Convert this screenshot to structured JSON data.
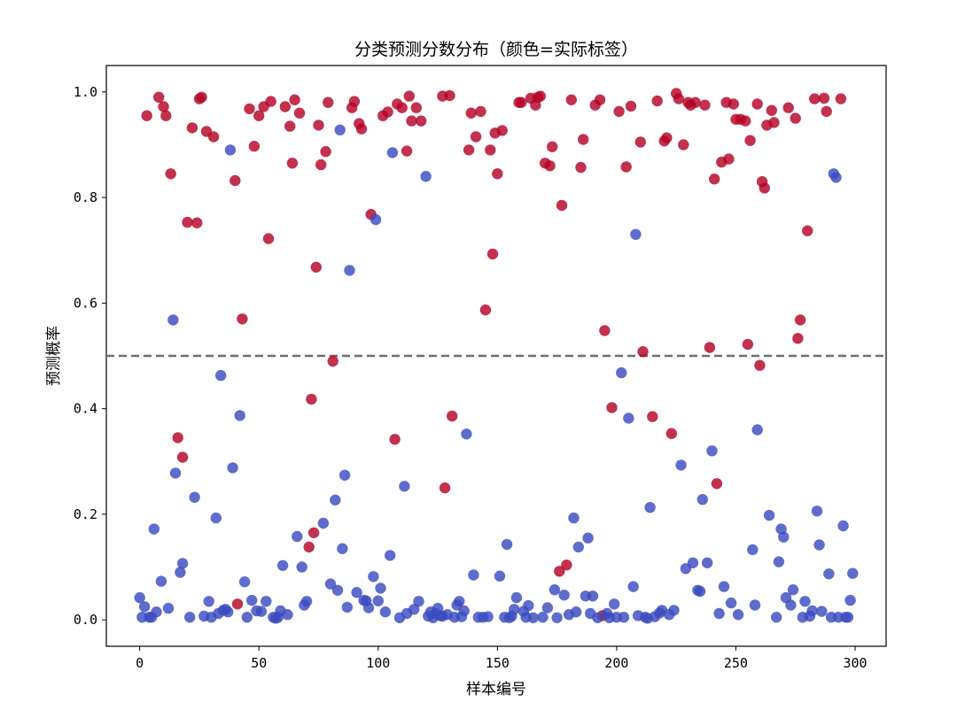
{
  "chart_data": {
    "type": "scatter",
    "title": "分类预测分数分布（颜色=实际标签）",
    "xlabel": "样本编号",
    "ylabel": "预测概率",
    "xlim": [
      -14,
      313
    ],
    "ylim": [
      -0.05,
      1.05
    ],
    "xticks": [
      0,
      50,
      100,
      150,
      200,
      250,
      300
    ],
    "yticks": [
      0.0,
      0.2,
      0.4,
      0.6,
      0.8,
      1.0
    ],
    "xtick_labels": [
      "0",
      "50",
      "100",
      "150",
      "200",
      "250",
      "300"
    ],
    "ytick_labels": [
      "0.0",
      "0.2",
      "0.4",
      "0.6",
      "0.8",
      "1.0"
    ],
    "threshold": 0.5,
    "grid": false,
    "legend": "none",
    "colors": {
      "label_1": "#b40426",
      "label_0": "#3b4cc0",
      "threshold": "#6e6e6e",
      "axes": "#000000"
    },
    "series": [
      {
        "label_value": 1,
        "points": [
          [
            3,
            0.955
          ],
          [
            8,
            0.99
          ],
          [
            10,
            0.972
          ],
          [
            11,
            0.955
          ],
          [
            13,
            0.845
          ],
          [
            16,
            0.345
          ],
          [
            18,
            0.308
          ],
          [
            20,
            0.753
          ],
          [
            22,
            0.932
          ],
          [
            24,
            0.752
          ],
          [
            25,
            0.987
          ],
          [
            26,
            0.99
          ],
          [
            28,
            0.925
          ],
          [
            31,
            0.915
          ],
          [
            40,
            0.832
          ],
          [
            41,
            0.03
          ],
          [
            43,
            0.57
          ],
          [
            46,
            0.968
          ],
          [
            48,
            0.897
          ],
          [
            50,
            0.955
          ],
          [
            52,
            0.972
          ],
          [
            54,
            0.722
          ],
          [
            55,
            0.982
          ],
          [
            61,
            0.972
          ],
          [
            63,
            0.935
          ],
          [
            64,
            0.865
          ],
          [
            65,
            0.985
          ],
          [
            67,
            0.96
          ],
          [
            71,
            0.138
          ],
          [
            72,
            0.418
          ],
          [
            73,
            0.165
          ],
          [
            74,
            0.668
          ],
          [
            75,
            0.937
          ],
          [
            76,
            0.862
          ],
          [
            78,
            0.887
          ],
          [
            79,
            0.98
          ],
          [
            81,
            0.49
          ],
          [
            89,
            0.97
          ],
          [
            90,
            0.982
          ],
          [
            92,
            0.94
          ],
          [
            93,
            0.93
          ],
          [
            97,
            0.768
          ],
          [
            102,
            0.955
          ],
          [
            104,
            0.962
          ],
          [
            107,
            0.342
          ],
          [
            108,
            0.977
          ],
          [
            110,
            0.97
          ],
          [
            112,
            0.888
          ],
          [
            113,
            0.992
          ],
          [
            114,
            0.945
          ],
          [
            116,
            0.97
          ],
          [
            118,
            0.945
          ],
          [
            127,
            0.992
          ],
          [
            128,
            0.25
          ],
          [
            130,
            0.993
          ],
          [
            131,
            0.386
          ],
          [
            138,
            0.89
          ],
          [
            139,
            0.96
          ],
          [
            141,
            0.915
          ],
          [
            143,
            0.963
          ],
          [
            145,
            0.587
          ],
          [
            147,
            0.89
          ],
          [
            148,
            0.693
          ],
          [
            149,
            0.922
          ],
          [
            150,
            0.845
          ],
          [
            152,
            0.927
          ],
          [
            159,
            0.98
          ],
          [
            160,
            0.98
          ],
          [
            164,
            0.988
          ],
          [
            166,
            0.975
          ],
          [
            167,
            0.99
          ],
          [
            168,
            0.992
          ],
          [
            170,
            0.865
          ],
          [
            172,
            0.86
          ],
          [
            173,
            0.896
          ],
          [
            176,
            0.092
          ],
          [
            177,
            0.785
          ],
          [
            179,
            0.104
          ],
          [
            181,
            0.985
          ],
          [
            185,
            0.857
          ],
          [
            186,
            0.91
          ],
          [
            191,
            0.975
          ],
          [
            193,
            0.985
          ],
          [
            194,
            0.008
          ],
          [
            195,
            0.548
          ],
          [
            198,
            0.402
          ],
          [
            201,
            0.963
          ],
          [
            204,
            0.858
          ],
          [
            206,
            0.973
          ],
          [
            210,
            0.905
          ],
          [
            211,
            0.508
          ],
          [
            215,
            0.385
          ],
          [
            217,
            0.983
          ],
          [
            220,
            0.907
          ],
          [
            221,
            0.913
          ],
          [
            223,
            0.353
          ],
          [
            225,
            0.997
          ],
          [
            226,
            0.987
          ],
          [
            228,
            0.9
          ],
          [
            230,
            0.98
          ],
          [
            231,
            0.975
          ],
          [
            233,
            0.98
          ],
          [
            237,
            0.975
          ],
          [
            239,
            0.516
          ],
          [
            241,
            0.835
          ],
          [
            242,
            0.258
          ],
          [
            244,
            0.867
          ],
          [
            246,
            0.98
          ],
          [
            247,
            0.873
          ],
          [
            249,
            0.977
          ],
          [
            250,
            0.948
          ],
          [
            252,
            0.948
          ],
          [
            254,
            0.945
          ],
          [
            255,
            0.522
          ],
          [
            256,
            0.908
          ],
          [
            259,
            0.977
          ],
          [
            260,
            0.482
          ],
          [
            261,
            0.83
          ],
          [
            262,
            0.818
          ],
          [
            263,
            0.937
          ],
          [
            265,
            0.965
          ],
          [
            266,
            0.942
          ],
          [
            272,
            0.97
          ],
          [
            275,
            0.95
          ],
          [
            276,
            0.533
          ],
          [
            277,
            0.568
          ],
          [
            280,
            0.737
          ],
          [
            283,
            0.987
          ],
          [
            287,
            0.988
          ],
          [
            288,
            0.963
          ],
          [
            294,
            0.987
          ]
        ]
      },
      {
        "label_value": 0,
        "points": [
          [
            0,
            0.042
          ],
          [
            1,
            0.005
          ],
          [
            2,
            0.025
          ],
          [
            4,
            0.005
          ],
          [
            5,
            0.005
          ],
          [
            6,
            0.172
          ],
          [
            7,
            0.015
          ],
          [
            9,
            0.073
          ],
          [
            12,
            0.022
          ],
          [
            14,
            0.568
          ],
          [
            15,
            0.278
          ],
          [
            17,
            0.09
          ],
          [
            18,
            0.107
          ],
          [
            21,
            0.005
          ],
          [
            23,
            0.232
          ],
          [
            27,
            0.007
          ],
          [
            29,
            0.035
          ],
          [
            30,
            0.005
          ],
          [
            32,
            0.193
          ],
          [
            33,
            0.012
          ],
          [
            34,
            0.463
          ],
          [
            35,
            0.018
          ],
          [
            36,
            0.02
          ],
          [
            37,
            0.015
          ],
          [
            38,
            0.89
          ],
          [
            39,
            0.288
          ],
          [
            42,
            0.387
          ],
          [
            44,
            0.072
          ],
          [
            45,
            0.005
          ],
          [
            47,
            0.037
          ],
          [
            49,
            0.017
          ],
          [
            51,
            0.016
          ],
          [
            53,
            0.035
          ],
          [
            56,
            0.005
          ],
          [
            57,
            0.003
          ],
          [
            58,
            0.005
          ],
          [
            59,
            0.017
          ],
          [
            60,
            0.103
          ],
          [
            62,
            0.01
          ],
          [
            66,
            0.158
          ],
          [
            68,
            0.1
          ],
          [
            69,
            0.028
          ],
          [
            70,
            0.035
          ],
          [
            77,
            0.183
          ],
          [
            80,
            0.068
          ],
          [
            82,
            0.227
          ],
          [
            83,
            0.056
          ],
          [
            84,
            0.928
          ],
          [
            85,
            0.135
          ],
          [
            86,
            0.274
          ],
          [
            87,
            0.024
          ],
          [
            88,
            0.662
          ],
          [
            91,
            0.052
          ],
          [
            94,
            0.037
          ],
          [
            95,
            0.036
          ],
          [
            96,
            0.023
          ],
          [
            98,
            0.082
          ],
          [
            99,
            0.758
          ],
          [
            100,
            0.036
          ],
          [
            101,
            0.06
          ],
          [
            103,
            0.015
          ],
          [
            105,
            0.122
          ],
          [
            106,
            0.885
          ],
          [
            109,
            0.004
          ],
          [
            111,
            0.253
          ],
          [
            112,
            0.012
          ],
          [
            115,
            0.02
          ],
          [
            117,
            0.035
          ],
          [
            120,
            0.84
          ],
          [
            121,
            0.007
          ],
          [
            122,
            0.015
          ],
          [
            123,
            0.004
          ],
          [
            124,
            0.012
          ],
          [
            125,
            0.022
          ],
          [
            126,
            0.008
          ],
          [
            127,
            0.007
          ],
          [
            129,
            0.01
          ],
          [
            132,
            0.005
          ],
          [
            133,
            0.028
          ],
          [
            134,
            0.035
          ],
          [
            135,
            0.006
          ],
          [
            136,
            0.017
          ],
          [
            137,
            0.352
          ],
          [
            140,
            0.085
          ],
          [
            142,
            0.005
          ],
          [
            144,
            0.005
          ],
          [
            146,
            0.006
          ],
          [
            151,
            0.083
          ],
          [
            153,
            0.005
          ],
          [
            154,
            0.143
          ],
          [
            155,
            0.004
          ],
          [
            156,
            0.007
          ],
          [
            157,
            0.02
          ],
          [
            158,
            0.042
          ],
          [
            161,
            0.016
          ],
          [
            162,
            0.005
          ],
          [
            163,
            0.027
          ],
          [
            165,
            0.004
          ],
          [
            169,
            0.005
          ],
          [
            171,
            0.023
          ],
          [
            174,
            0.057
          ],
          [
            175,
            0.004
          ],
          [
            178,
            0.047
          ],
          [
            180,
            0.01
          ],
          [
            182,
            0.193
          ],
          [
            183,
            0.015
          ],
          [
            184,
            0.138
          ],
          [
            187,
            0.045
          ],
          [
            188,
            0.155
          ],
          [
            189,
            0.012
          ],
          [
            190,
            0.045
          ],
          [
            192,
            0.004
          ],
          [
            196,
            0.012
          ],
          [
            197,
            0.004
          ],
          [
            199,
            0.03
          ],
          [
            200,
            0.005
          ],
          [
            202,
            0.468
          ],
          [
            203,
            0.005
          ],
          [
            205,
            0.382
          ],
          [
            207,
            0.063
          ],
          [
            208,
            0.73
          ],
          [
            209,
            0.008
          ],
          [
            212,
            0.005
          ],
          [
            213,
            0.003
          ],
          [
            214,
            0.213
          ],
          [
            216,
            0.006
          ],
          [
            218,
            0.013
          ],
          [
            219,
            0.018
          ],
          [
            222,
            0.01
          ],
          [
            224,
            0.018
          ],
          [
            227,
            0.293
          ],
          [
            229,
            0.097
          ],
          [
            232,
            0.108
          ],
          [
            234,
            0.056
          ],
          [
            235,
            0.054
          ],
          [
            236,
            0.228
          ],
          [
            238,
            0.108
          ],
          [
            240,
            0.32
          ],
          [
            243,
            0.012
          ],
          [
            245,
            0.063
          ],
          [
            248,
            0.032
          ],
          [
            251,
            0.01
          ],
          [
            257,
            0.133
          ],
          [
            258,
            0.028
          ],
          [
            259,
            0.36
          ],
          [
            264,
            0.198
          ],
          [
            267,
            0.005
          ],
          [
            268,
            0.11
          ],
          [
            269,
            0.172
          ],
          [
            270,
            0.157
          ],
          [
            271,
            0.042
          ],
          [
            273,
            0.028
          ],
          [
            274,
            0.057
          ],
          [
            278,
            0.005
          ],
          [
            279,
            0.035
          ],
          [
            281,
            0.007
          ],
          [
            282,
            0.017
          ],
          [
            284,
            0.206
          ],
          [
            285,
            0.142
          ],
          [
            286,
            0.016
          ],
          [
            289,
            0.087
          ],
          [
            290,
            0.005
          ],
          [
            291,
            0.845
          ],
          [
            292,
            0.838
          ],
          [
            293,
            0.005
          ],
          [
            295,
            0.178
          ],
          [
            296,
            0.005
          ],
          [
            297,
            0.005
          ],
          [
            298,
            0.037
          ],
          [
            299,
            0.088
          ]
        ]
      }
    ]
  }
}
